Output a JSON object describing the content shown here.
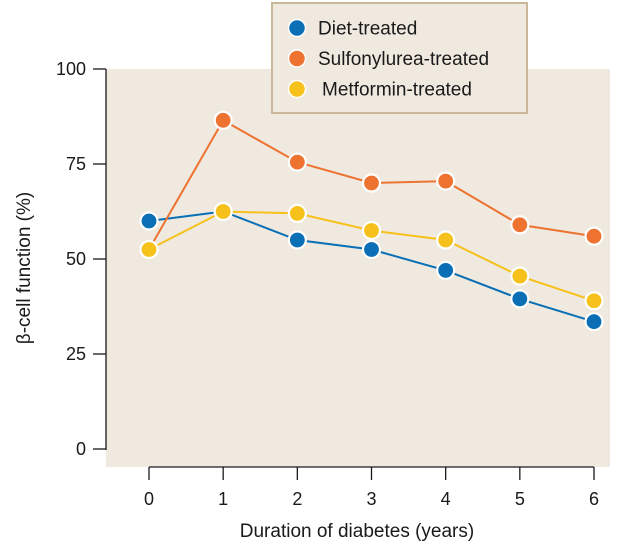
{
  "chart_data": {
    "type": "line",
    "title": "",
    "xlabel": "Duration of diabetes (years)",
    "ylabel": "β-cell function (%)",
    "x": [
      0,
      1,
      2,
      3,
      4,
      5,
      6
    ],
    "xlim": [
      0,
      6
    ],
    "ylim": [
      0,
      100
    ],
    "yticks": [
      0,
      25,
      50,
      75,
      100
    ],
    "xticks": [
      0,
      1,
      2,
      3,
      4,
      5,
      6
    ],
    "grid": false,
    "legend_position": "top-right",
    "background_color": "#efe9df",
    "series": [
      {
        "name": "Diet-treated",
        "color": "#0a6fb5",
        "values": [
          60,
          62.5,
          55,
          52.5,
          47,
          39.5,
          33.5
        ]
      },
      {
        "name": "Sulfonylurea-treated",
        "color": "#ee7330",
        "values": [
          52.5,
          86.5,
          75.5,
          70,
          70.5,
          59,
          56
        ]
      },
      {
        "name": "Metformin-treated",
        "color": "#f7c11c",
        "values": [
          52.5,
          62.5,
          62,
          57.5,
          55,
          45.5,
          39
        ]
      }
    ]
  }
}
